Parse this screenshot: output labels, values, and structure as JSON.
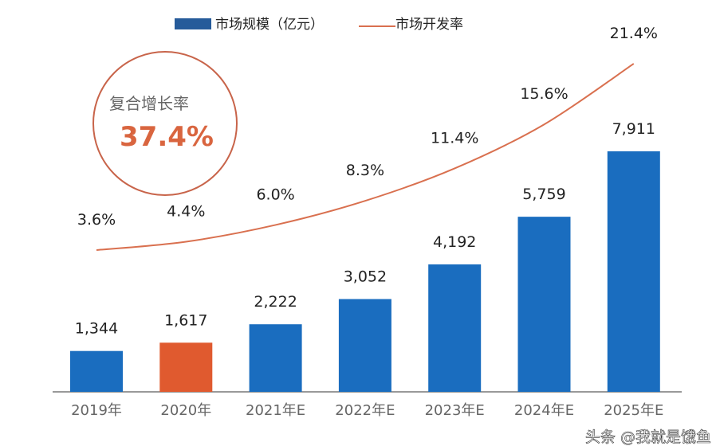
{
  "chart_data": {
    "type": "bar+line",
    "categories": [
      "2019年",
      "2020年",
      "2021年E",
      "2022年E",
      "2023年E",
      "2024年E",
      "2025年E"
    ],
    "series": [
      {
        "name": "市场规模（亿元）",
        "type": "bar",
        "values": [
          1344,
          1617,
          2222,
          3052,
          4192,
          5759,
          7911
        ],
        "labels": [
          "1,344",
          "1,617",
          "2,222",
          "3,052",
          "4,192",
          "5,759",
          "7,911"
        ],
        "color": "#1a6dbf",
        "highlight_index": 1,
        "highlight_color": "#e05a2f"
      },
      {
        "name": "市场开发率",
        "type": "line",
        "values": [
          3.6,
          4.4,
          6.0,
          8.3,
          11.4,
          15.6,
          21.4
        ],
        "labels": [
          "3.6%",
          "4.4%",
          "6.0%",
          "8.3%",
          "11.4%",
          "15.6%",
          "21.4%"
        ],
        "color": "#d9704f"
      }
    ],
    "legend": {
      "position": "top",
      "bar_label": "市场规模（亿元）",
      "line_label": "市场开发率",
      "bar_swatch_color": "#265b9a"
    },
    "annotation": {
      "label": "复合增长率",
      "value": "37.4%"
    },
    "grid": false
  },
  "watermark": "头条 @我就是饿鱼"
}
